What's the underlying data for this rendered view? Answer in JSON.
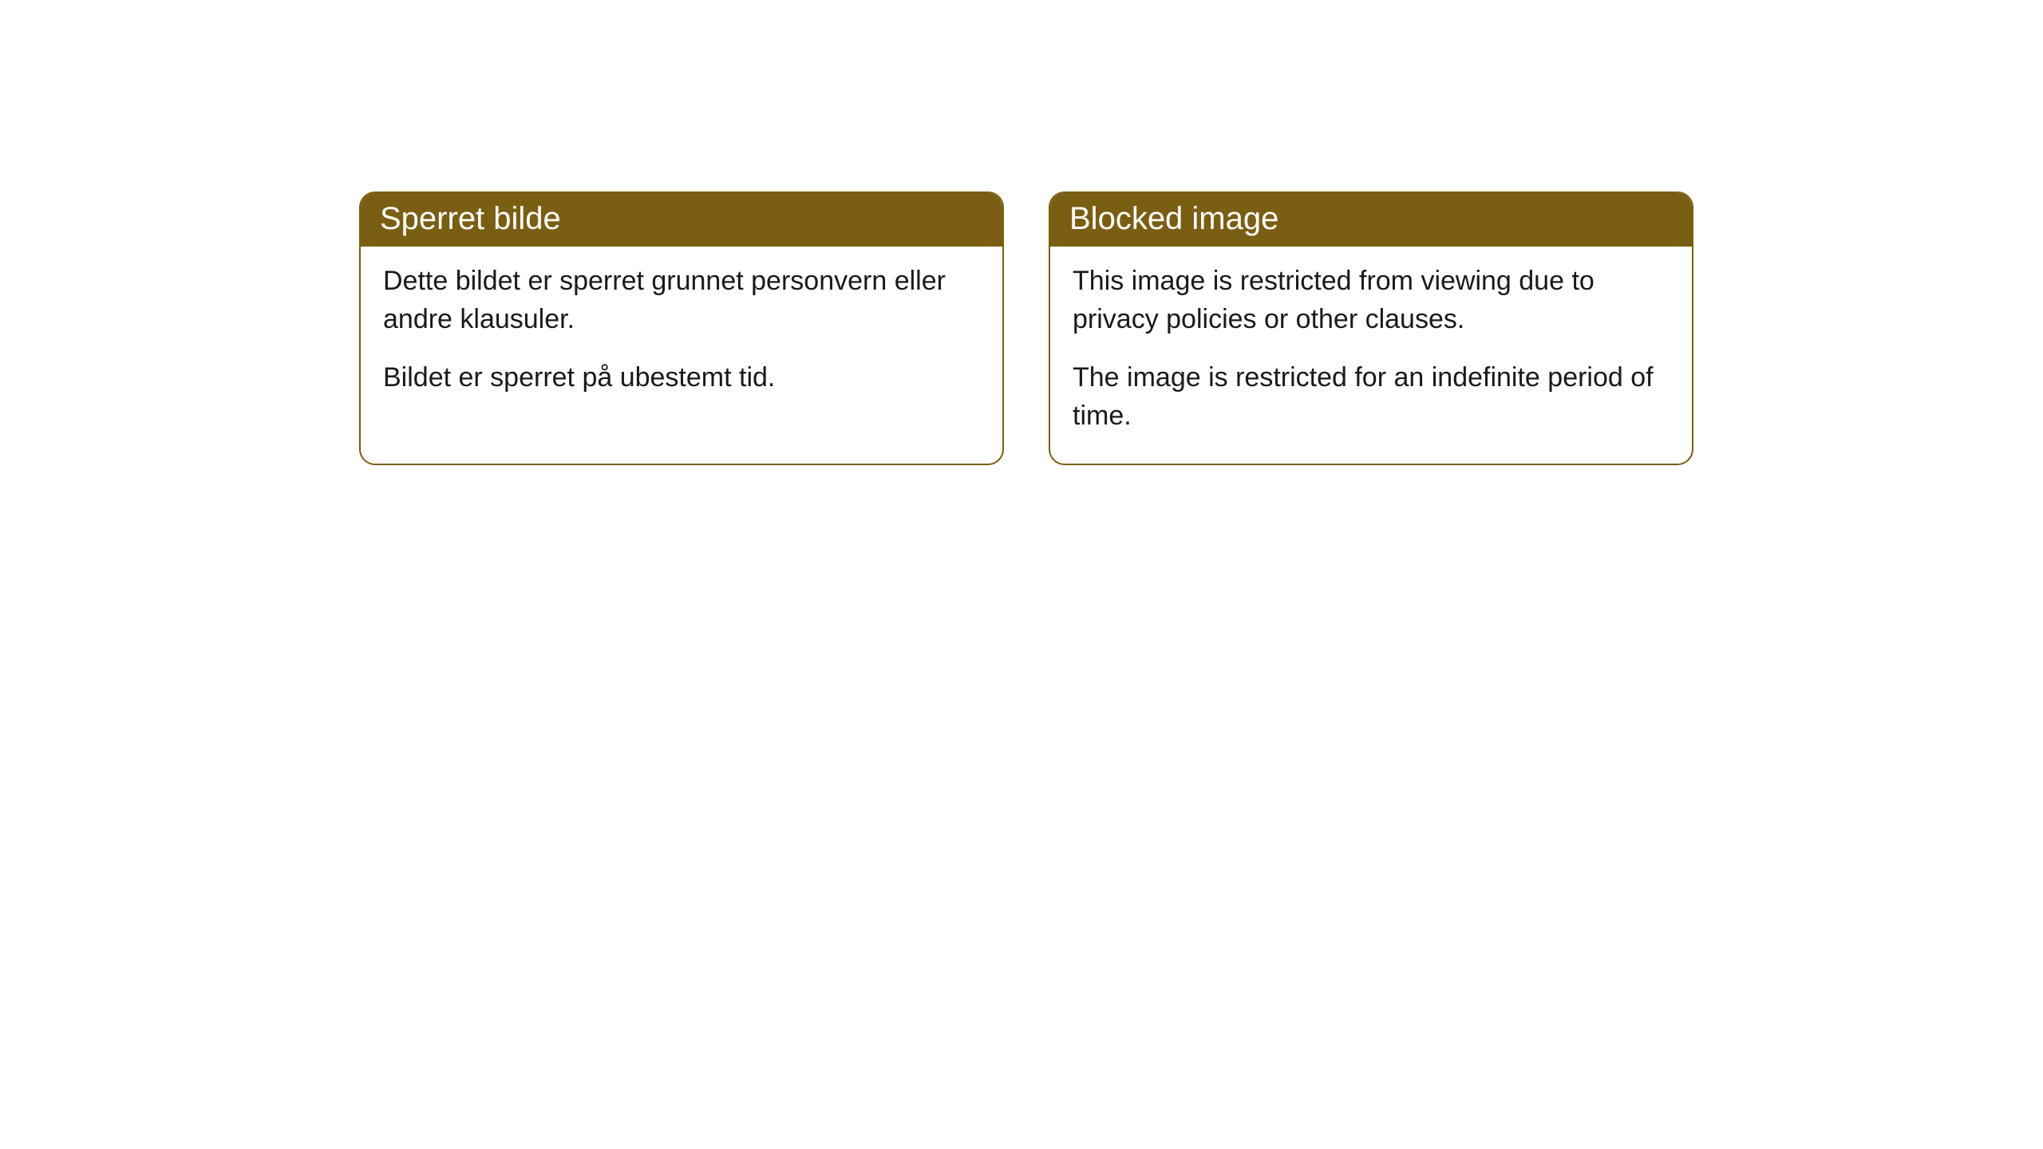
{
  "cards": [
    {
      "title": "Sperret bilde",
      "paragraph1": "Dette bildet er sperret grunnet personvern eller andre klausuler.",
      "paragraph2": "Bildet er sperret på ubestemt tid."
    },
    {
      "title": "Blocked image",
      "paragraph1": "This image is restricted from viewing due to privacy policies or other clauses.",
      "paragraph2": "The image is restricted for an indefinite period of time."
    }
  ],
  "styling": {
    "header_background": "#7a5e12",
    "header_text_color": "#ffffff",
    "border_color": "#7a5e12",
    "body_background": "#ffffff",
    "body_text_color": "#1a1a1a",
    "border_radius": 20,
    "title_fontsize": 40,
    "body_fontsize": 34
  }
}
